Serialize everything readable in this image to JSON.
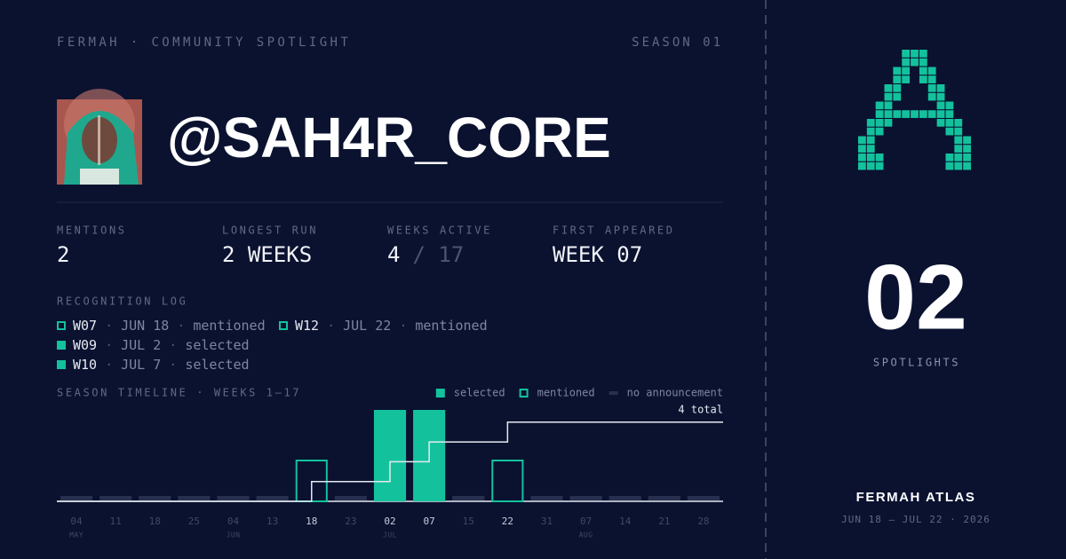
{
  "header": {
    "brand": "FERMAH · COMMUNITY SPOTLIGHT",
    "season": "SEASON 01"
  },
  "profile": {
    "handle": "@SAH4R_CORE"
  },
  "stats": [
    {
      "label": "MENTIONS",
      "value": "2"
    },
    {
      "label": "LONGEST RUN",
      "value": "2 WEEKS"
    },
    {
      "label": "WEEKS ACTIVE",
      "value": "4",
      "total": "/ 17"
    },
    {
      "label": "FIRST APPEARED",
      "value": "WEEK 07"
    }
  ],
  "log": {
    "title": "RECOGNITION LOG",
    "separator": "·",
    "entries": [
      {
        "week": "W07",
        "date": "JUN 18",
        "status": "mentioned",
        "marker": "hollow"
      },
      {
        "week": "W12",
        "date": "JUL 22",
        "status": "mentioned",
        "marker": "hollow"
      },
      {
        "week": "W09",
        "date": "JUL 2",
        "status": "selected",
        "marker": "filled"
      },
      {
        "week": "W10",
        "date": "JUL 7",
        "status": "selected",
        "marker": "filled"
      }
    ]
  },
  "timeline": {
    "title": "SEASON TIMELINE · WEEKS 1–17",
    "legend": [
      {
        "label": "selected",
        "style": "filled"
      },
      {
        "label": "mentioned",
        "style": "hollow"
      },
      {
        "label": "no announcement",
        "style": "none"
      }
    ],
    "total_label": "4 total",
    "weeks": [
      {
        "day": "04",
        "month": "MAY",
        "style": "none"
      },
      {
        "day": "11",
        "month": null,
        "style": "none"
      },
      {
        "day": "18",
        "month": null,
        "style": "none"
      },
      {
        "day": "25",
        "month": null,
        "style": "none"
      },
      {
        "day": "04",
        "month": "JUN",
        "style": "none"
      },
      {
        "day": "13",
        "month": null,
        "style": "none"
      },
      {
        "day": "18",
        "month": null,
        "style": "hollow"
      },
      {
        "day": "23",
        "month": null,
        "style": "none"
      },
      {
        "day": "02",
        "month": "JUL",
        "style": "filled"
      },
      {
        "day": "07",
        "month": null,
        "style": "filled"
      },
      {
        "day": "15",
        "month": null,
        "style": "none"
      },
      {
        "day": "22",
        "month": null,
        "style": "hollow"
      },
      {
        "day": "31",
        "month": null,
        "style": "none"
      },
      {
        "day": "07",
        "month": "AUG",
        "style": "none"
      },
      {
        "day": "14",
        "month": null,
        "style": "none"
      },
      {
        "day": "21",
        "month": null,
        "style": "none"
      },
      {
        "day": "28",
        "month": null,
        "style": "none"
      }
    ]
  },
  "spotlights": {
    "value": "02",
    "label": "SPOTLIGHTS"
  },
  "footer": {
    "name": "FERMAH ATLAS",
    "range": "JUN 18 — JUL 22 · 2026"
  }
}
